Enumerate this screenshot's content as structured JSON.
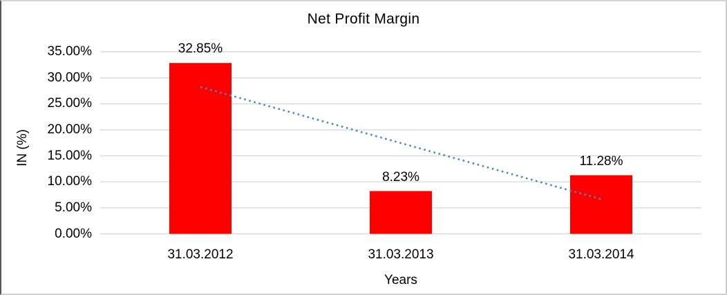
{
  "chart_data": {
    "type": "bar",
    "title": "Net Profit Margin",
    "xlabel": "Years",
    "ylabel": "IN (%)",
    "categories": [
      "31.03.2012",
      "31.03.2013",
      "31.03.2014"
    ],
    "values": [
      32.85,
      8.23,
      11.28
    ],
    "data_labels": [
      "32.85%",
      "8.23%",
      "11.28%"
    ],
    "ylim": [
      0,
      35
    ],
    "ytick_step": 5,
    "ytick_labels": [
      "0.00%",
      "5.00%",
      "10.00%",
      "15.00%",
      "20.00%",
      "25.00%",
      "30.00%",
      "35.00%"
    ],
    "grid": true,
    "legend": "none",
    "bar_color": "#ff0000",
    "gridline_color": "#d9d9d9",
    "text_color": "#000000",
    "trendline": {
      "type": "linear",
      "style": "dotted",
      "color": "#4f86c6",
      "start_value": 28.24,
      "end_value": 6.67
    }
  }
}
